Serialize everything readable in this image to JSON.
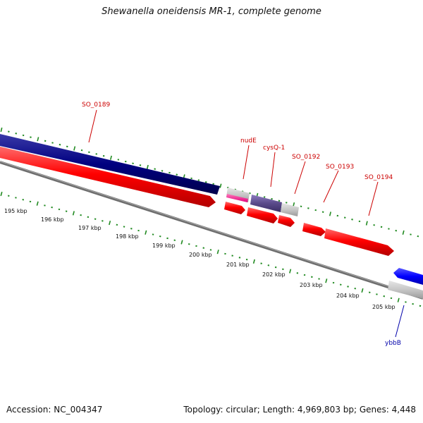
{
  "title": "Shewanella oneidensis MR-1, complete genome",
  "footer": {
    "accession": "Accession: NC_004347",
    "summary": "Topology: circular; Length: 4,969,803 bp; Genes: 4,448"
  },
  "tick_labels": [
    "195 kbp",
    "196 kbp",
    "197 kbp",
    "198 kbp",
    "199 kbp",
    "200 kbp",
    "201 kbp",
    "202 kbp",
    "203 kbp",
    "204 kbp",
    "205 kbp"
  ],
  "gene_labels": [
    {
      "name": "SO_0189",
      "color": "#cc0000"
    },
    {
      "name": "nudE",
      "color": "#cc0000"
    },
    {
      "name": "cysQ-1",
      "color": "#cc0000"
    },
    {
      "name": "SO_0192",
      "color": "#cc0000"
    },
    {
      "name": "SO_0193",
      "color": "#cc0000"
    },
    {
      "name": "SO_0194",
      "color": "#cc0000"
    },
    {
      "name": "ybbB",
      "color": "#0000aa"
    }
  ],
  "colors": {
    "cds_forward": "#ff0000",
    "cds_navy": "#000080",
    "cds_purple": "#6a5a9a",
    "rna_magenta": "#ff3399",
    "cds_blue": "#0000ff",
    "pseudo_gray": "#c8c8c8",
    "backbone": "#808080",
    "tick_green": "#228b22"
  }
}
